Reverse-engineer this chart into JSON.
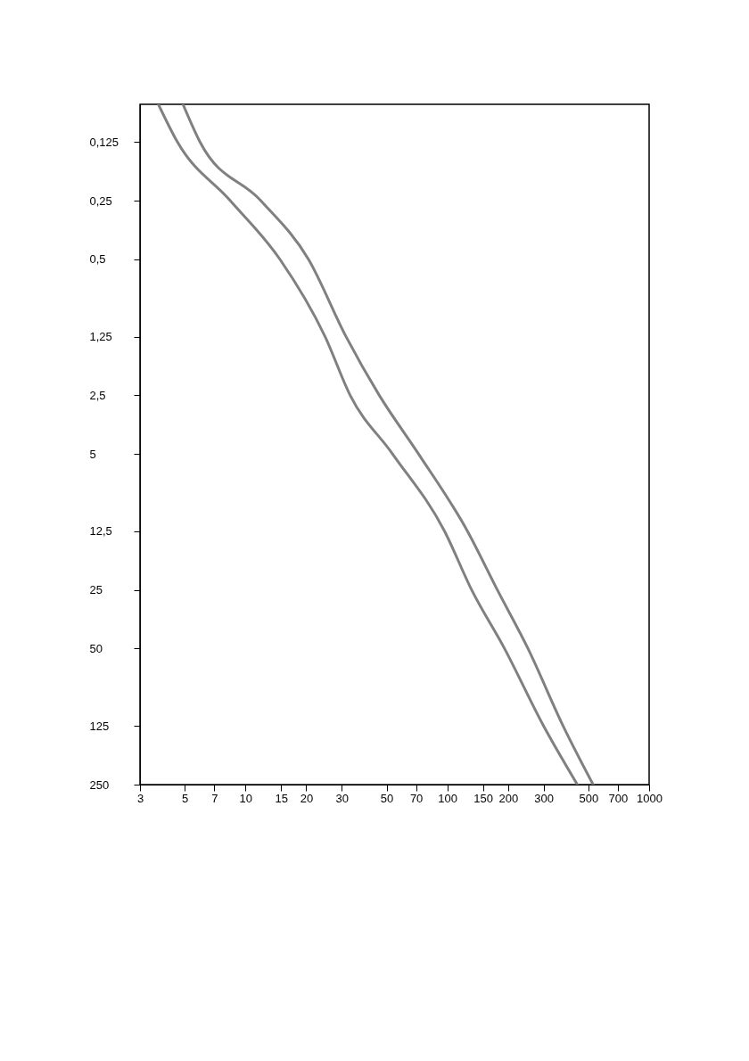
{
  "chart_data": {
    "type": "line",
    "log": "xy",
    "xlim": [
      3,
      1000
    ],
    "ylim": [
      250,
      0.08
    ],
    "xticks": [
      3,
      5,
      7,
      10,
      15,
      20,
      30,
      50,
      70,
      100,
      150,
      200,
      300,
      500,
      700,
      1000
    ],
    "yticks": [
      {
        "value": 0.125,
        "label": "0,125"
      },
      {
        "value": 0.25,
        "label": "0,25"
      },
      {
        "value": 0.5,
        "label": "0,5"
      },
      {
        "value": 1.25,
        "label": "1,25"
      },
      {
        "value": 2.5,
        "label": "2,5"
      },
      5,
      {
        "value": 12.5,
        "label": "12,5"
      },
      25,
      50,
      125,
      250
    ],
    "series": [
      {
        "color": "#808080",
        "x": [
          3.7,
          4.6,
          8.4,
          14.8,
          24.8,
          33,
          53.5,
          97,
          132,
          192,
          300,
          441
        ],
        "values": [
          0.08,
          0.125,
          0.25,
          0.5,
          1.25,
          2.5,
          5,
          12.5,
          25,
          50,
          125,
          250
        ]
      },
      {
        "color": "#808080",
        "x": [
          4.9,
          5.95,
          11.9,
          20.5,
          31.5,
          46,
          72,
          126,
          177,
          251,
          375,
          528
        ],
        "values": [
          0.08,
          0.125,
          0.25,
          0.5,
          1.25,
          2.5,
          5,
          12.5,
          25,
          50,
          125,
          250
        ]
      }
    ]
  }
}
